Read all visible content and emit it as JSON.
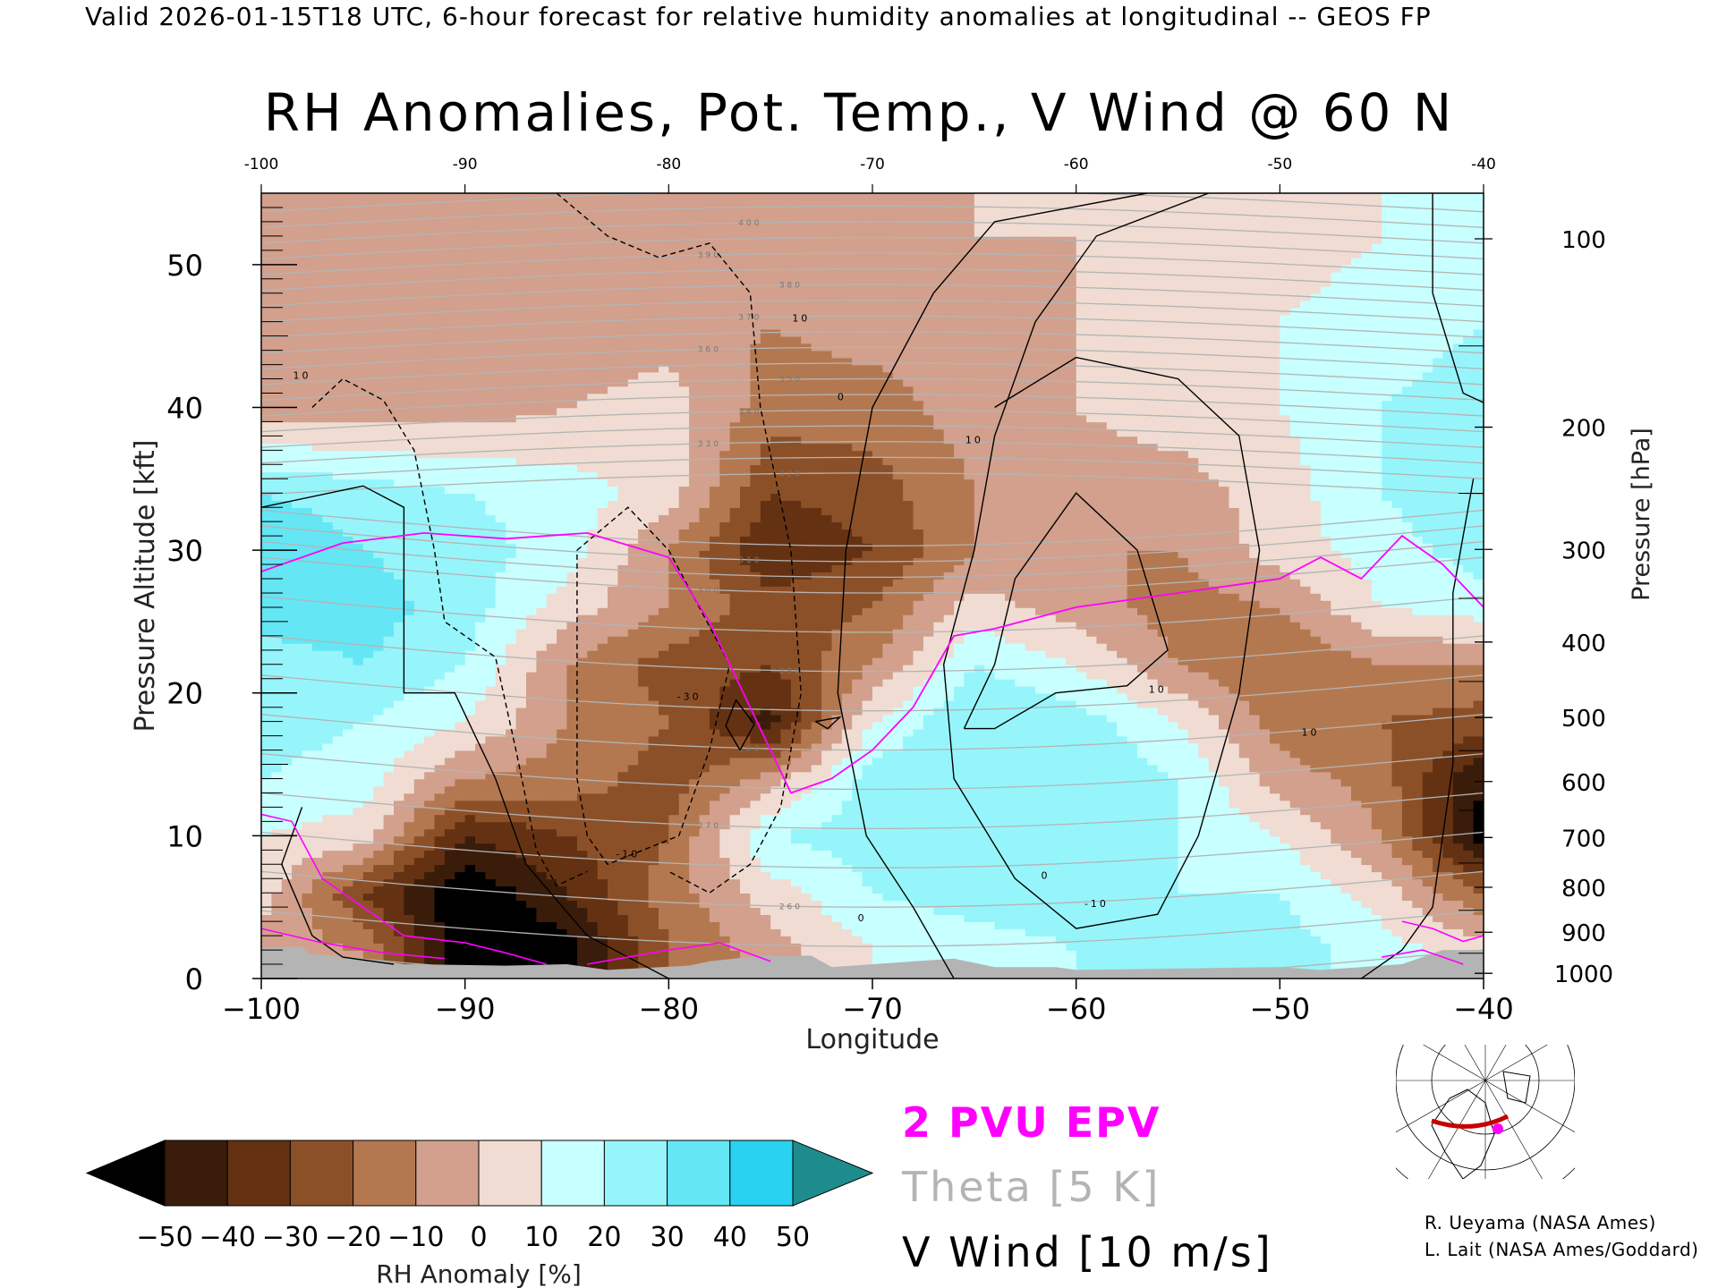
{
  "header": {
    "valid_line": "Valid 2026-01-15T18 UTC, 6-hour forecast for relative humidity anomalies at longitudinal -- GEOS FP",
    "title": "RH Anomalies, Pot. Temp., V Wind @ 60 N"
  },
  "chart_data": {
    "type": "heatmap",
    "title": "RH Anomalies, Pot. Temp., V Wind @ 60 N",
    "xlabel": "Longitude",
    "ylabel_left": "Pressure Altitude [kft]",
    "ylabel_right": "Pressure [hPa]",
    "xlim": [
      -100,
      -40
    ],
    "ylim": [
      0,
      55
    ],
    "x_ticks": [
      -100,
      -90,
      -80,
      -70,
      -60,
      -50,
      -40
    ],
    "x_tick_labels": [
      "−100",
      "−90",
      "−80",
      "−70",
      "−60",
      "−50",
      "−40"
    ],
    "top_tick_labels": [
      "-100",
      "-90",
      "-80",
      "-70",
      "-60",
      "-50",
      "-40"
    ],
    "y_ticks_kft": [
      0,
      10,
      20,
      30,
      40,
      50
    ],
    "pressure_ticks_hpa": [
      100,
      200,
      300,
      400,
      500,
      600,
      700,
      800,
      900,
      1000
    ],
    "colorbar": {
      "label": "RH Anomaly [%]",
      "ticks": [
        -50,
        -40,
        -30,
        -20,
        -10,
        0,
        10,
        20,
        30,
        40,
        50
      ],
      "tick_labels": [
        "−50",
        "−40",
        "−30",
        "−20",
        "−10",
        "0",
        "10",
        "20",
        "30",
        "40",
        "50"
      ],
      "colors": [
        "#3a1c0b",
        "#643212",
        "#8c5028",
        "#b47850",
        "#d2a08c",
        "#f0dcd2",
        "#c8ffff",
        "#96f5fa",
        "#64e6f5",
        "#28d2f0",
        "#0a91b4"
      ],
      "under_color": "#000000",
      "over_color": "#1e8c8c"
    },
    "rh_anomaly_grid": {
      "x": [
        -100,
        -95,
        -90,
        -85,
        -80,
        -75,
        -70,
        -65,
        -60,
        -55,
        -50,
        -45,
        -40
      ],
      "y_kft": [
        2,
        6,
        10,
        14,
        18,
        22,
        26,
        30,
        34,
        40,
        46,
        52
      ],
      "values": [
        [
          -5,
          -10,
          -60,
          -55,
          -20,
          -5,
          10,
          15,
          20,
          20,
          25,
          15,
          5
        ],
        [
          5,
          -30,
          -60,
          -40,
          -15,
          5,
          20,
          25,
          25,
          20,
          20,
          5,
          -20
        ],
        [
          10,
          5,
          -40,
          -30,
          -20,
          20,
          25,
          25,
          25,
          20,
          10,
          -10,
          -55
        ],
        [
          20,
          15,
          -10,
          -15,
          -25,
          -5,
          25,
          30,
          30,
          20,
          -5,
          -15,
          -50
        ],
        [
          25,
          20,
          10,
          -10,
          -20,
          -45,
          10,
          30,
          25,
          10,
          -15,
          -20,
          -25
        ],
        [
          25,
          30,
          20,
          -10,
          -25,
          -30,
          -10,
          20,
          10,
          -10,
          -20,
          -10,
          -10
        ],
        [
          35,
          35,
          25,
          5,
          -10,
          -25,
          -20,
          5,
          -5,
          -15,
          -10,
          10,
          15
        ],
        [
          40,
          30,
          25,
          15,
          -10,
          -40,
          -30,
          -10,
          -10,
          -10,
          5,
          15,
          25
        ],
        [
          30,
          25,
          20,
          15,
          5,
          -30,
          -25,
          -10,
          -5,
          -5,
          5,
          20,
          30
        ],
        [
          -5,
          -5,
          -5,
          0,
          5,
          -15,
          -15,
          -5,
          0,
          5,
          10,
          20,
          25
        ],
        [
          -10,
          -10,
          -10,
          -10,
          -5,
          -10,
          -5,
          -5,
          0,
          5,
          10,
          15,
          20
        ],
        [
          -10,
          -10,
          -10,
          -10,
          -10,
          -5,
          -5,
          0,
          0,
          5,
          5,
          10,
          10
        ]
      ]
    },
    "theta_contours_K": [
      250,
      260,
      270,
      280,
      290,
      300,
      310,
      320,
      330,
      340,
      350,
      360,
      370,
      380,
      390,
      400,
      410
    ],
    "theta_interval_K": 5,
    "v_wind_contours_ms": [
      -30,
      -10,
      0,
      10,
      30
    ],
    "v_wind_contour_labels": [
      "-30",
      "-10",
      "0",
      "10",
      "0",
      "10",
      "10",
      "0",
      "-10",
      "10",
      "10"
    ],
    "epv_2pvu_kft": {
      "x": [
        -100,
        -96,
        -92,
        -88,
        -84,
        -80,
        -78,
        -76,
        -74,
        -72,
        -70,
        -68,
        -66,
        -64,
        -60,
        -55,
        -50,
        -48,
        -46,
        -44,
        -42,
        -40
      ],
      "y": [
        28.5,
        30.5,
        31.2,
        30.8,
        31.2,
        29.5,
        25,
        19,
        13,
        14,
        16,
        19,
        24,
        24.5,
        26,
        27,
        28,
        29.5,
        28,
        31,
        29,
        26
      ]
    },
    "ground_gray": "#b4b4b4",
    "legend": [
      "2 PVU EPV",
      "Theta [5 K]",
      "V Wind [10 m/s]"
    ]
  },
  "legend": {
    "epv": "2 PVU EPV",
    "theta": "Theta [5 K]",
    "vwind": "V Wind [10 m/s]",
    "epv_color": "#ff00ff",
    "theta_color": "#b4b4b4",
    "vwind_color": "#000000"
  },
  "credits": {
    "line1": "R. Ueyama (NASA Ames)",
    "line2": "L. Lait (NASA Ames/Goddard)"
  },
  "inset_map": {
    "section_color": "#c80000",
    "marker_color": "#ff00ff"
  }
}
